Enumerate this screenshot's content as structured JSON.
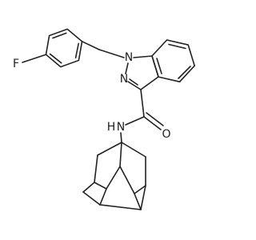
{
  "atoms": [
    {
      "label": "F"
    },
    {
      "label": "N"
    },
    {
      "label": "N"
    },
    {
      "label": "O"
    },
    {
      "label": "H"
    },
    {
      "label": "N"
    }
  ]
}
